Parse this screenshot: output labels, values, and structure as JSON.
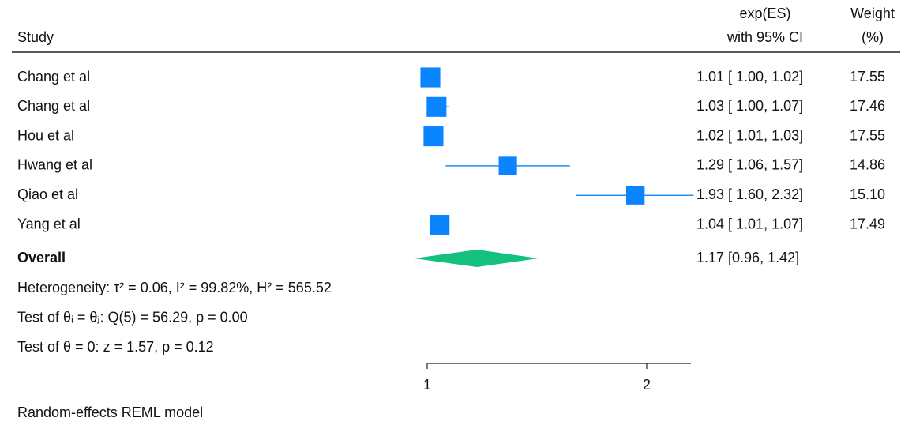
{
  "chart_data": {
    "type": "forest",
    "study_header": "Study",
    "ci_header": [
      "exp(ES)",
      "with 95% CI"
    ],
    "weight_header": [
      "Weight",
      "(%)"
    ],
    "categories": [
      "Chang et al",
      "Chang et al",
      "Hou et al",
      "Hwang et al",
      "Qiao et al",
      "Yang et al"
    ],
    "es": [
      1.01,
      1.03,
      1.02,
      1.29,
      1.93,
      1.04
    ],
    "lo": [
      1.0,
      1.0,
      1.01,
      1.06,
      1.6,
      1.01
    ],
    "hi": [
      1.02,
      1.07,
      1.03,
      1.57,
      2.32,
      1.07
    ],
    "ci_labels": [
      "1.01 [ 1.00,  1.02]",
      "1.03 [ 1.00,  1.07]",
      "1.02 [ 1.01,  1.03]",
      "1.29 [ 1.06,  1.57]",
      "1.93 [ 1.60,  2.32]",
      "1.04 [ 1.01,  1.07]"
    ],
    "weights": [
      17.55,
      17.46,
      17.55,
      14.86,
      15.1,
      17.49
    ],
    "weight_labels": [
      "17.55",
      "17.46",
      "17.55",
      "14.86",
      "15.10",
      "17.49"
    ],
    "overall": {
      "label": "Overall",
      "es": 1.17,
      "lo": 0.96,
      "hi": 1.42,
      "ci_label": "1.17 [0.96,  1.42]"
    },
    "notes": [
      "Heterogeneity: τ² = 0.06, I² = 99.82%, H² = 565.52",
      "Test of θᵢ = θⱼ: Q(5) = 56.29, p = 0.00",
      "Test of θ = 0: z = 1.57, p = 0.12"
    ],
    "xlim": [
      1,
      2.3
    ],
    "xticks": [
      1,
      2
    ],
    "log_x": true,
    "footnote": "Random-effects REML model",
    "square_color": "#0a84ff",
    "ci_color": "#1e90ff",
    "diamond_color": "#14c080"
  }
}
